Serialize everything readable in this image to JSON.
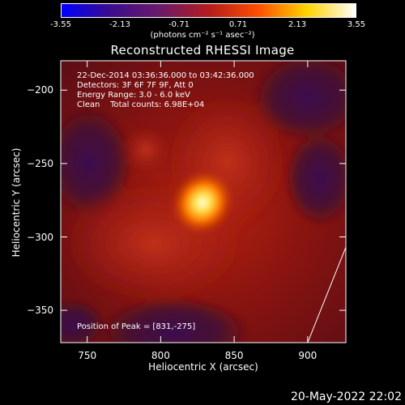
{
  "colorbar": {
    "tick_labels": [
      "-3.55",
      "-2.13",
      "-0.71",
      "0.71",
      "2.13",
      "3.55"
    ],
    "units_label": "(photons cm⁻² s⁻¹ asec⁻²)",
    "colormap": [
      "#0000ff",
      "#3b0d8c",
      "#6b1a6b",
      "#b31c1c",
      "#ff4d00",
      "#ffd400",
      "#ffffff"
    ]
  },
  "header": {
    "title": "Reconstructed RHESSI Image",
    "info_lines": [
      "22-Dec-2014 03:36:36.000 to 03:42:36.000",
      "Detectors: 3F 6F 7F 9F, Att 0",
      "Energy Range: 3.0 - 6.0 keV",
      "Clean    Total counts: 6.98E+04"
    ],
    "peak_label": "Position of Peak = [831,-275]"
  },
  "footer": {
    "timestamp": "20-May-2022 22:02"
  },
  "chart_data": {
    "type": "heatmap",
    "title": "Reconstructed RHESSI Image",
    "xlabel": "Heliocentric X (arcsec)",
    "ylabel": "Heliocentric Y (arcsec)",
    "xlim": [
      732,
      926
    ],
    "ylim": [
      -372,
      -180
    ],
    "x_ticks": [
      750,
      800,
      850,
      900
    ],
    "y_ticks": [
      -200,
      -250,
      -300,
      -350
    ],
    "colorbar_range": [
      -3.55,
      3.55
    ],
    "peak": {
      "x": 831,
      "y": -275
    },
    "limb_line": [
      {
        "x": 900,
        "y": -372
      },
      {
        "x": 926,
        "y": -307
      }
    ]
  }
}
